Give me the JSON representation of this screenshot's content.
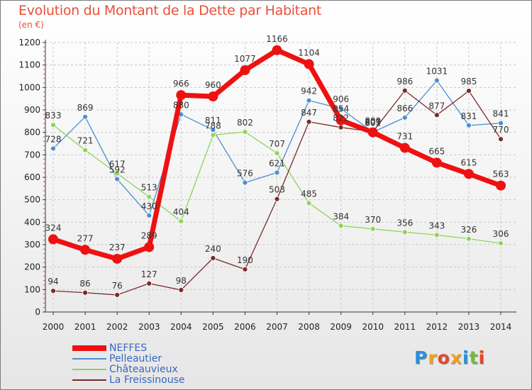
{
  "title": "Evolution du Montant de la Dette par Habitant",
  "unit": "(en €)",
  "logo": {
    "text": "Proxiti",
    "letters": [
      {
        "ch": "P",
        "color": "#2b8fd6"
      },
      {
        "ch": "r",
        "color": "#f0a020"
      },
      {
        "ch": "o",
        "color": "#e04a2a"
      },
      {
        "ch": "x",
        "color": "#f0a020"
      },
      {
        "ch": "i",
        "color": "#2b8fd6"
      },
      {
        "ch": "t",
        "color": "#6cbf3a"
      },
      {
        "ch": "i",
        "color": "#e04a2a"
      }
    ]
  },
  "chart_data": {
    "type": "line",
    "x": [
      "2000",
      "2001",
      "2002",
      "2003",
      "2004",
      "2005",
      "2006",
      "2007",
      "2008",
      "2009",
      "2010",
      "2011",
      "2012",
      "2013",
      "2014"
    ],
    "ylim": [
      0,
      1200
    ],
    "yticks": [
      0,
      100,
      200,
      300,
      400,
      500,
      600,
      700,
      800,
      900,
      1000,
      1100,
      1200
    ],
    "grid": true,
    "legend_position": "bottom-left",
    "series": [
      {
        "name": "Pelleautier",
        "color": "#4a8fd0",
        "width": 1.3,
        "markerRadius": 3.5,
        "values": [
          728,
          869,
          592,
          430,
          880,
          811,
          576,
          621,
          942,
          906,
          801,
          866,
          1031,
          831,
          841
        ],
        "labels": [
          "728",
          "869",
          "592",
          "430",
          "880",
          "811",
          "576",
          "621",
          "942",
          "906",
          "801",
          "866",
          "1031",
          "831",
          "841"
        ]
      },
      {
        "name": "Châteauvieux",
        "color": "#8fd45a",
        "width": 1.3,
        "markerRadius": 3.5,
        "values": [
          833,
          721,
          617,
          513,
          404,
          788,
          802,
          707,
          485,
          384,
          370,
          356,
          343,
          326,
          306
        ],
        "labels": [
          "833",
          "721",
          "617",
          "513",
          "404",
          "788",
          "802",
          "707",
          "485",
          "384",
          "370",
          "356",
          "343",
          "326",
          "306"
        ]
      },
      {
        "name": "La Freissinouse",
        "color": "#7a2a2a",
        "width": 1.3,
        "markerRadius": 3.5,
        "values": [
          94,
          86,
          76,
          127,
          98,
          240,
          190,
          503,
          847,
          822,
          803,
          986,
          877,
          985,
          770
        ],
        "labels": [
          "94",
          "86",
          "76",
          "127",
          "98",
          "240",
          "190",
          "503",
          "847",
          "822",
          "803",
          "986",
          "877",
          "985",
          "770"
        ]
      },
      {
        "name": "NEFFES",
        "color": "#ee1111",
        "width": 7,
        "markerRadius": 7,
        "values": [
          324,
          277,
          237,
          289,
          966,
          960,
          1077,
          1166,
          1104,
          854,
          800,
          731,
          665,
          615,
          563
        ],
        "labels": [
          "324",
          "277",
          "237",
          "289",
          "966",
          "960",
          "1077",
          "1166",
          "1104",
          "854",
          "800",
          "731",
          "665",
          "615",
          "563"
        ]
      }
    ]
  }
}
